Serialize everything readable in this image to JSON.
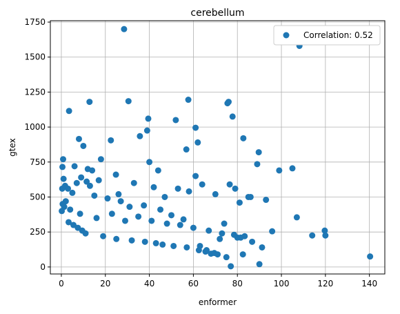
{
  "chart_data": {
    "type": "scatter",
    "title": "cerebellum",
    "xlabel": "enformer",
    "ylabel": "gtex",
    "xlim": [
      -5,
      147
    ],
    "ylim": [
      -50,
      1760
    ],
    "xticks": [
      0,
      20,
      40,
      60,
      80,
      100,
      120,
      140
    ],
    "yticks": [
      0,
      250,
      500,
      750,
      1000,
      1250,
      1500,
      1750
    ],
    "grid": true,
    "legend_position": "top-right",
    "series": [
      {
        "name": "Correlation: 0.52",
        "color": "#1f77b4",
        "x": [
          28.5,
          108.2,
          57.7,
          76.0,
          30.5,
          12.8,
          3.5,
          75.5,
          77.8,
          39.5,
          52.0,
          61.0,
          39.0,
          35.7,
          82.7,
          62.0,
          8.0,
          22.5,
          10.0,
          56.8,
          89.7,
          40.0,
          18.0,
          0.8,
          12.0,
          89.0,
          99.0,
          105.0,
          14.0,
          44.0,
          61.0,
          24.8,
          6.0,
          0.5,
          1.0,
          9.0,
          11.5,
          1.7,
          0.4,
          3.0,
          7.0,
          13.0,
          17.0,
          26.0,
          33.0,
          42.0,
          47.0,
          53.0,
          58.0,
          64.0,
          70.0,
          76.5,
          79.0,
          85.0,
          81.0,
          86.0,
          93.0,
          95.8,
          107.0,
          114.0,
          119.7,
          120.0,
          140.3,
          90.0,
          77.0,
          80.0,
          82.5,
          83.3,
          86.7,
          91.2,
          63.0,
          66.0,
          68.0,
          72.0,
          74.0,
          55.5,
          50.0,
          45.0,
          37.5,
          31.0,
          27.0,
          21.0,
          15.0,
          5.0,
          2.0,
          0.2,
          0.6,
          1.3,
          4.0,
          8.5,
          16.0,
          23.0,
          29.0,
          35.0,
          41.0,
          48.0,
          54.0,
          60.0,
          67.0,
          73.0,
          78.5,
          81.5,
          3.3,
          5.5,
          7.5,
          9.5,
          11.0,
          19.0,
          25.0,
          32.0,
          38.0,
          43.0,
          46.0,
          51.0,
          57.0,
          62.5,
          65.5,
          69.5,
          71.0,
          75.0
        ],
        "y": [
          1700,
          1580,
          1195,
          1180,
          1185,
          1180,
          1115,
          1170,
          1075,
          1060,
          1050,
          995,
          975,
          935,
          920,
          890,
          915,
          905,
          865,
          840,
          820,
          750,
          770,
          770,
          700,
          735,
          690,
          705,
          690,
          690,
          650,
          660,
          720,
          715,
          630,
          640,
          610,
          580,
          560,
          560,
          600,
          580,
          620,
          520,
          600,
          570,
          500,
          560,
          540,
          590,
          520,
          590,
          560,
          500,
          460,
          500,
          480,
          255,
          355,
          225,
          260,
          225,
          75,
          20,
          5,
          210,
          90,
          220,
          180,
          140,
          150,
          120,
          95,
          200,
          310,
          340,
          370,
          410,
          440,
          430,
          470,
          490,
          510,
          530,
          470,
          400,
          450,
          430,
          410,
          380,
          350,
          380,
          330,
          360,
          330,
          310,
          300,
          280,
          260,
          240,
          230,
          210,
          320,
          300,
          280,
          260,
          240,
          220,
          200,
          190,
          180,
          170,
          160,
          150,
          140,
          120,
          110,
          100,
          90,
          70
        ]
      }
    ]
  }
}
